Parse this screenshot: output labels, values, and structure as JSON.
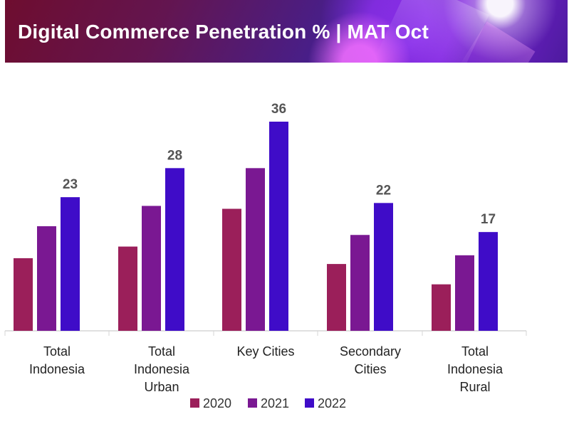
{
  "header": {
    "title": "Digital Commerce Penetration % | MAT Oct"
  },
  "chart_data": {
    "type": "bar",
    "categories": [
      [
        "Total",
        "Indonesia"
      ],
      [
        "Total",
        "Indonesia",
        "Urban"
      ],
      [
        "Key Cities"
      ],
      [
        "Secondary",
        "Cities"
      ],
      [
        "Total",
        "Indonesia",
        "Rural"
      ]
    ],
    "series": [
      {
        "name": "2020",
        "color": "#9b1f5a",
        "values": [
          12.5,
          14.5,
          21.0,
          11.5,
          8.0
        ]
      },
      {
        "name": "2021",
        "color": "#7a1892",
        "values": [
          18.0,
          21.5,
          28.0,
          16.5,
          13.0
        ]
      },
      {
        "name": "2022",
        "color": "#3f0cc8",
        "values": [
          23,
          28,
          36,
          22,
          17
        ],
        "labels": [
          "23",
          "28",
          "36",
          "22",
          "17"
        ]
      }
    ],
    "ylim": [
      0,
      36
    ],
    "grid": false,
    "legend_position": "bottom-center"
  }
}
